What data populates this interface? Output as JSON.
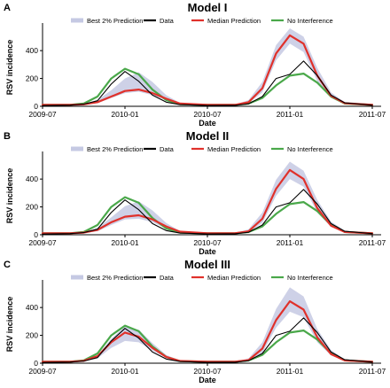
{
  "legend": {
    "entries": [
      {
        "name": "Best 2% Prediction",
        "color": "#c5c9e3"
      },
      {
        "name": "Data",
        "color": "#000000"
      },
      {
        "name": "Median Prediction",
        "color": "#e0312b"
      },
      {
        "name": "No Interference",
        "color": "#4aa84a"
      }
    ]
  },
  "chart_data": [
    {
      "type": "line",
      "panel_label": "A",
      "title": "Model I",
      "xlabel": "Date",
      "ylabel": "RSV incidence",
      "x_ticks": [
        "2009-07",
        "2010-01",
        "2010-07",
        "2011-01",
        "2011-07"
      ],
      "y_ticks": [
        0,
        200,
        400
      ],
      "ylim": [
        0,
        560
      ],
      "grid": false,
      "legend_position": "top",
      "series": [
        {
          "name": "Median Prediction",
          "x": [
            "2009-07",
            "2009-09",
            "2009-10",
            "2009-11",
            "2009-12",
            "2010-01",
            "2010-02",
            "2010-03",
            "2010-04",
            "2010-05",
            "2010-07",
            "2010-09",
            "2010-10",
            "2010-11",
            "2010-12",
            "2011-01",
            "2011-02",
            "2011-03",
            "2011-04",
            "2011-05",
            "2011-07"
          ],
          "values": [
            10,
            11,
            14,
            30,
            70,
            110,
            120,
            95,
            55,
            20,
            10,
            10,
            30,
            130,
            380,
            510,
            450,
            220,
            75,
            22,
            10
          ]
        },
        {
          "name": "Best 2% Prediction",
          "x": [
            "2009-07",
            "2009-09",
            "2009-10",
            "2009-11",
            "2009-12",
            "2010-01",
            "2010-02",
            "2010-03",
            "2010-04",
            "2010-05",
            "2010-07",
            "2010-09",
            "2010-10",
            "2010-11",
            "2010-12",
            "2011-01",
            "2011-02",
            "2011-03",
            "2011-04",
            "2011-05",
            "2011-07"
          ],
          "lower": [
            10,
            11,
            13,
            22,
            60,
            95,
            105,
            80,
            42,
            16,
            10,
            10,
            22,
            100,
            330,
            450,
            390,
            180,
            60,
            18,
            10
          ],
          "upper": [
            10,
            12,
            18,
            45,
            115,
            200,
            245,
            175,
            80,
            25,
            10,
            11,
            45,
            175,
            440,
            560,
            500,
            275,
            100,
            30,
            10
          ]
        },
        {
          "name": "No Interference",
          "x": [
            "2009-07",
            "2009-09",
            "2009-10",
            "2009-11",
            "2009-12",
            "2010-01",
            "2010-02",
            "2010-03",
            "2010-04",
            "2010-05",
            "2010-07",
            "2010-09",
            "2010-10",
            "2010-11",
            "2010-12",
            "2011-01",
            "2011-02",
            "2011-03",
            "2011-04",
            "2011-05",
            "2011-07"
          ],
          "values": [
            10,
            11,
            20,
            70,
            200,
            270,
            230,
            120,
            45,
            15,
            10,
            10,
            20,
            60,
            150,
            220,
            235,
            170,
            70,
            20,
            10
          ]
        },
        {
          "name": "Data",
          "x": [
            "2009-07",
            "2009-09",
            "2009-10",
            "2009-11",
            "2009-12",
            "2010-01",
            "2010-02",
            "2010-03",
            "2010-04",
            "2010-05",
            "2010-07",
            "2010-09",
            "2010-10",
            "2010-11",
            "2010-12",
            "2011-01",
            "2011-02",
            "2011-03",
            "2011-04",
            "2011-05",
            "2011-07"
          ],
          "values": [
            5,
            8,
            15,
            40,
            160,
            250,
            180,
            80,
            30,
            12,
            6,
            7,
            18,
            70,
            200,
            230,
            325,
            220,
            80,
            25,
            8
          ]
        }
      ]
    },
    {
      "type": "line",
      "panel_label": "B",
      "title": "Model II",
      "xlabel": "Date",
      "ylabel": "RSV incidence",
      "x_ticks": [
        "2009-07",
        "2010-01",
        "2010-07",
        "2011-01",
        "2011-07"
      ],
      "y_ticks": [
        0,
        200,
        400
      ],
      "ylim": [
        0,
        560
      ],
      "grid": false,
      "legend_position": "top",
      "series": [
        {
          "name": "Median Prediction",
          "x": [
            "2009-07",
            "2009-09",
            "2009-10",
            "2009-11",
            "2009-12",
            "2010-01",
            "2010-02",
            "2010-03",
            "2010-04",
            "2010-05",
            "2010-07",
            "2010-09",
            "2010-10",
            "2010-11",
            "2010-12",
            "2011-01",
            "2011-02",
            "2011-03",
            "2011-04",
            "2011-05",
            "2011-07"
          ],
          "values": [
            10,
            11,
            15,
            35,
            90,
            130,
            140,
            110,
            60,
            22,
            10,
            10,
            25,
            115,
            330,
            465,
            400,
            190,
            65,
            20,
            10
          ]
        },
        {
          "name": "Best 2% Prediction",
          "x": [
            "2009-07",
            "2009-09",
            "2009-10",
            "2009-11",
            "2009-12",
            "2010-01",
            "2010-02",
            "2010-03",
            "2010-04",
            "2010-05",
            "2010-07",
            "2010-09",
            "2010-10",
            "2010-11",
            "2010-12",
            "2011-01",
            "2011-02",
            "2011-03",
            "2011-04",
            "2011-05",
            "2011-07"
          ],
          "lower": [
            10,
            11,
            13,
            25,
            70,
            110,
            115,
            90,
            45,
            17,
            10,
            10,
            18,
            85,
            280,
            400,
            345,
            160,
            55,
            17,
            10
          ],
          "upper": [
            10,
            12,
            19,
            50,
            125,
            205,
            240,
            175,
            85,
            26,
            10,
            11,
            40,
            160,
            395,
            525,
            460,
            250,
            95,
            28,
            10
          ]
        },
        {
          "name": "No Interference",
          "x": [
            "2009-07",
            "2009-09",
            "2009-10",
            "2009-11",
            "2009-12",
            "2010-01",
            "2010-02",
            "2010-03",
            "2010-04",
            "2010-05",
            "2010-07",
            "2010-09",
            "2010-10",
            "2010-11",
            "2010-12",
            "2011-01",
            "2011-02",
            "2011-03",
            "2011-04",
            "2011-05",
            "2011-07"
          ],
          "values": [
            10,
            11,
            20,
            70,
            200,
            270,
            230,
            120,
            45,
            15,
            10,
            10,
            20,
            60,
            150,
            220,
            235,
            170,
            70,
            20,
            10
          ]
        },
        {
          "name": "Data",
          "x": [
            "2009-07",
            "2009-09",
            "2009-10",
            "2009-11",
            "2009-12",
            "2010-01",
            "2010-02",
            "2010-03",
            "2010-04",
            "2010-05",
            "2010-07",
            "2010-09",
            "2010-10",
            "2010-11",
            "2010-12",
            "2011-01",
            "2011-02",
            "2011-03",
            "2011-04",
            "2011-05",
            "2011-07"
          ],
          "values": [
            5,
            8,
            15,
            40,
            160,
            250,
            180,
            80,
            30,
            12,
            6,
            7,
            18,
            70,
            200,
            230,
            325,
            220,
            80,
            25,
            8
          ]
        }
      ]
    },
    {
      "type": "line",
      "panel_label": "C",
      "title": "Model III",
      "xlabel": "Date",
      "ylabel": "RSV incidence",
      "x_ticks": [
        "2009-07",
        "2010-01",
        "2010-07",
        "2011-01",
        "2011-07"
      ],
      "y_ticks": [
        0,
        200,
        400
      ],
      "ylim": [
        0,
        560
      ],
      "grid": false,
      "legend_position": "top",
      "series": [
        {
          "name": "Median Prediction",
          "x": [
            "2009-07",
            "2009-09",
            "2009-10",
            "2009-11",
            "2009-12",
            "2010-01",
            "2010-02",
            "2010-03",
            "2010-04",
            "2010-05",
            "2010-07",
            "2010-09",
            "2010-10",
            "2010-11",
            "2010-12",
            "2011-01",
            "2011-02",
            "2011-03",
            "2011-04",
            "2011-05",
            "2011-07"
          ],
          "values": [
            10,
            11,
            17,
            50,
            150,
            220,
            190,
            110,
            45,
            16,
            10,
            10,
            22,
            105,
            310,
            445,
            385,
            185,
            65,
            20,
            10
          ]
        },
        {
          "name": "Best 2% Prediction",
          "x": [
            "2009-07",
            "2009-09",
            "2009-10",
            "2009-11",
            "2009-12",
            "2010-01",
            "2010-02",
            "2010-03",
            "2010-04",
            "2010-05",
            "2010-07",
            "2010-09",
            "2010-10",
            "2010-11",
            "2010-12",
            "2011-01",
            "2011-02",
            "2011-03",
            "2011-04",
            "2011-05",
            "2011-07"
          ],
          "lower": [
            10,
            11,
            14,
            35,
            110,
            160,
            150,
            90,
            38,
            14,
            10,
            10,
            17,
            75,
            255,
            370,
            330,
            150,
            55,
            17,
            10
          ],
          "upper": [
            10,
            12,
            20,
            60,
            175,
            265,
            240,
            145,
            60,
            20,
            10,
            11,
            35,
            150,
            390,
            545,
            480,
            245,
            95,
            27,
            10
          ]
        },
        {
          "name": "No Interference",
          "x": [
            "2009-07",
            "2009-09",
            "2009-10",
            "2009-11",
            "2009-12",
            "2010-01",
            "2010-02",
            "2010-03",
            "2010-04",
            "2010-05",
            "2010-07",
            "2010-09",
            "2010-10",
            "2010-11",
            "2010-12",
            "2011-01",
            "2011-02",
            "2011-03",
            "2011-04",
            "2011-05",
            "2011-07"
          ],
          "values": [
            10,
            11,
            20,
            70,
            200,
            270,
            230,
            120,
            45,
            15,
            10,
            10,
            20,
            60,
            150,
            220,
            235,
            170,
            70,
            20,
            10
          ]
        },
        {
          "name": "Data",
          "x": [
            "2009-07",
            "2009-09",
            "2009-10",
            "2009-11",
            "2009-12",
            "2010-01",
            "2010-02",
            "2010-03",
            "2010-04",
            "2010-05",
            "2010-07",
            "2010-09",
            "2010-10",
            "2010-11",
            "2010-12",
            "2011-01",
            "2011-02",
            "2011-03",
            "2011-04",
            "2011-05",
            "2011-07"
          ],
          "values": [
            5,
            8,
            15,
            40,
            160,
            250,
            180,
            80,
            30,
            12,
            6,
            7,
            18,
            70,
            200,
            230,
            325,
            220,
            80,
            25,
            8
          ]
        }
      ]
    }
  ]
}
